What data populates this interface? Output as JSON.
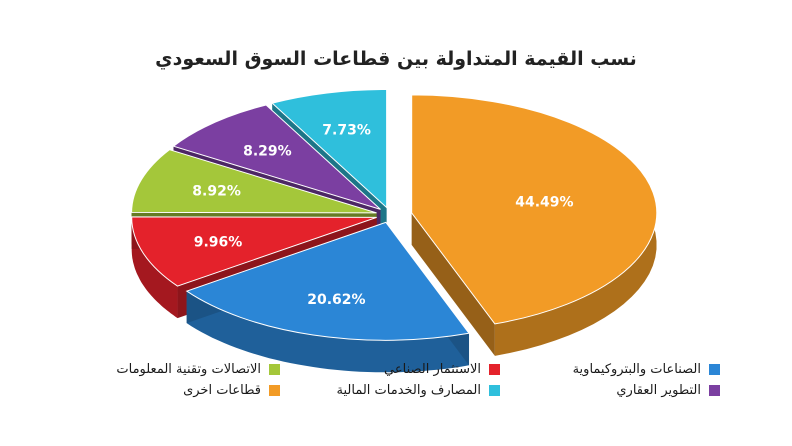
{
  "chart_data": {
    "type": "pie",
    "title": "نسب القيمة المتداولة بين قطاعات السوق السعودي",
    "slices": [
      {
        "name": "قطاعات اخرى",
        "value": 44.49,
        "label": "44.49%",
        "color": "#f29b26"
      },
      {
        "name": "الصناعات والبتروكيماوية",
        "value": 20.62,
        "label": "20.62%",
        "color": "#2b86d6"
      },
      {
        "name": "الاستثمار الصناعي",
        "value": 9.96,
        "label": "9.96%",
        "color": "#e4222b"
      },
      {
        "name": "الاتصالات وتقنية المعلومات",
        "value": 8.92,
        "label": "8.92%",
        "color": "#a4c73a"
      },
      {
        "name": "التطوير العقاري",
        "value": 8.29,
        "label": "8.29%",
        "color": "#7b3fa1"
      },
      {
        "name": "المصارف والخدمات المالية",
        "value": 7.73,
        "label": "7.73%",
        "color": "#2fbfdc"
      }
    ],
    "legend_order": [
      "الصناعات والبتروكيماوية",
      "الاستثمار الصناعي",
      "الاتصالات وتقنية المعلومات",
      "التطوير العقاري",
      "المصارف والخدمات المالية",
      "قطاعات اخرى"
    ],
    "legend_position": "bottom"
  }
}
